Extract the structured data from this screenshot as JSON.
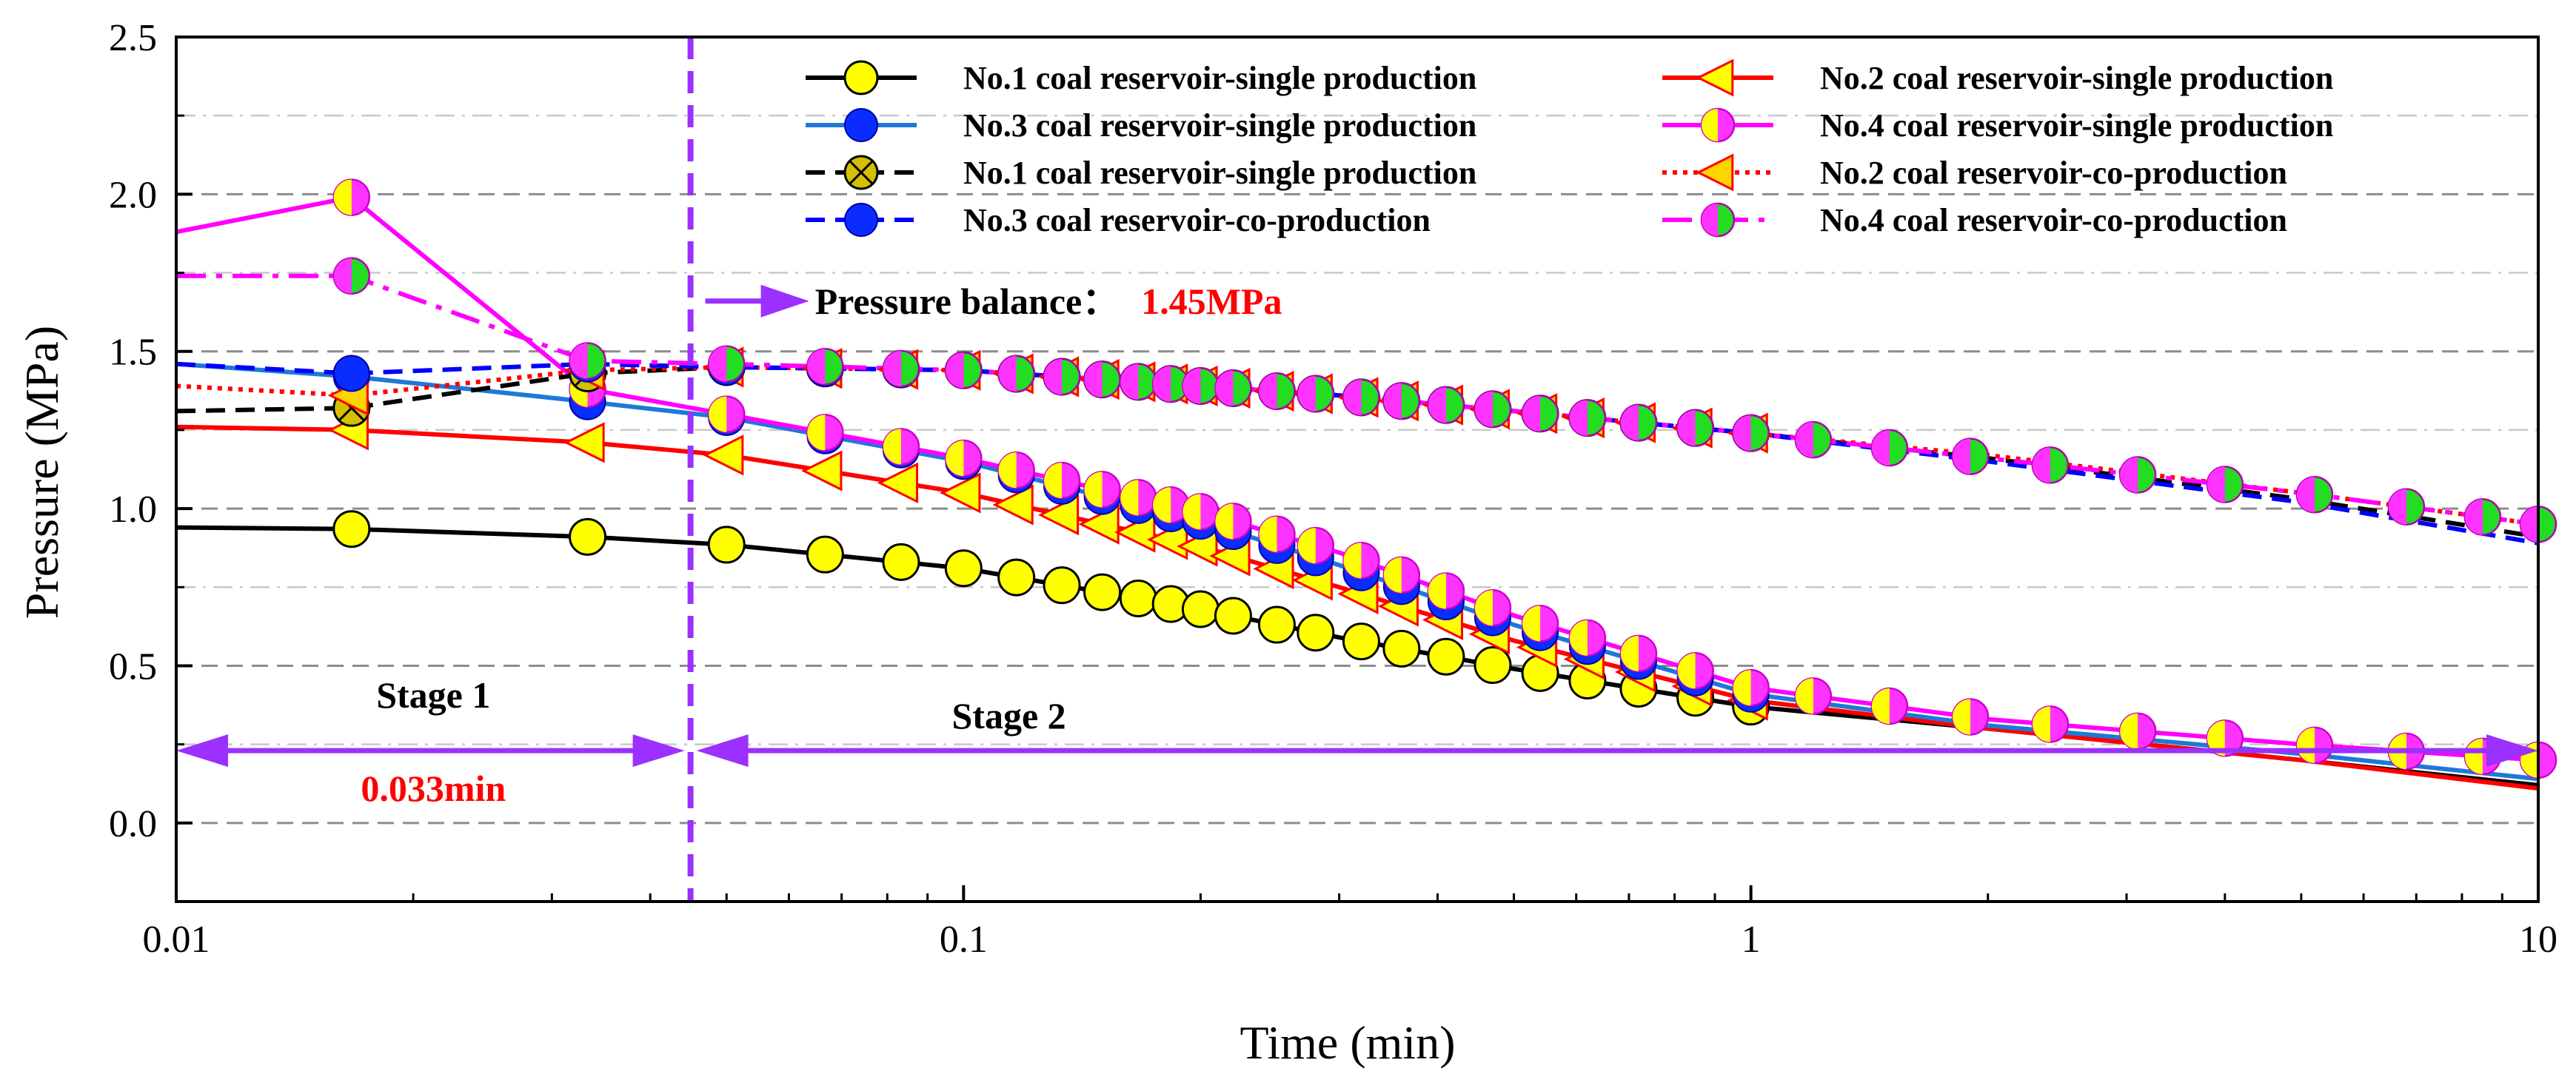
{
  "chart_data": {
    "type": "line",
    "xlabel": "Time (min)",
    "ylabel": "Pressure (MPa)",
    "x_scale": "log",
    "xlim": [
      0.01,
      10
    ],
    "ylim": [
      -0.25,
      2.5
    ],
    "x_ticks": [
      {
        "value": 0.01,
        "label": "0.01"
      },
      {
        "value": 0.1,
        "label": "0.1"
      },
      {
        "value": 1,
        "label": "1"
      },
      {
        "value": 10,
        "label": "10"
      }
    ],
    "y_ticks": [
      {
        "value": 0.0,
        "label": "0.0"
      },
      {
        "value": 0.5,
        "label": "0.5"
      },
      {
        "value": 1.0,
        "label": "1.0"
      },
      {
        "value": 1.5,
        "label": "1.5"
      },
      {
        "value": 2.0,
        "label": "2.0"
      },
      {
        "value": 2.5,
        "label": "2.5"
      }
    ],
    "major_grid": [
      0.0,
      0.5,
      1.0,
      1.5,
      2.0
    ],
    "minor_grid": [
      0.25,
      0.75,
      1.25,
      1.75,
      2.25
    ],
    "legend_position": "top-right",
    "series": [
      {
        "name": "No.1 coal reservoir-single production",
        "color": "#000000",
        "dash": "solid",
        "marker": "circle-yellow",
        "x": [
          0.01,
          0.0167,
          0.0333,
          0.05,
          0.1,
          0.2,
          0.3,
          0.5,
          1,
          2,
          5,
          10
        ],
        "y": [
          0.94,
          0.935,
          0.91,
          0.885,
          0.81,
          0.68,
          0.59,
          0.49,
          0.37,
          0.3,
          0.2,
          0.12
        ]
      },
      {
        "name": "No.2 coal reservoir-single production",
        "color": "#ff0000",
        "dash": "solid",
        "marker": "triangle-left-yellow",
        "x": [
          0.01,
          0.0167,
          0.0333,
          0.05,
          0.1,
          0.2,
          0.3,
          0.5,
          1,
          2,
          5,
          10
        ],
        "y": [
          1.26,
          1.25,
          1.21,
          1.17,
          1.05,
          0.88,
          0.75,
          0.58,
          0.39,
          0.3,
          0.2,
          0.11
        ]
      },
      {
        "name": "No.3 coal reservoir-single production",
        "color": "#1e78d8",
        "dash": "solid",
        "marker": "circle-blue",
        "x": [
          0.01,
          0.0167,
          0.0333,
          0.05,
          0.1,
          0.2,
          0.3,
          0.5,
          1,
          2,
          5,
          10
        ],
        "y": [
          1.46,
          1.42,
          1.34,
          1.29,
          1.15,
          0.96,
          0.82,
          0.63,
          0.41,
          0.31,
          0.22,
          0.14
        ]
      },
      {
        "name": "No.4 coal reservoir-single production",
        "color": "#ff00ff",
        "dash": "solid",
        "marker": "circle-half",
        "x": [
          0.01,
          0.0167,
          0.0333,
          0.05,
          0.1,
          0.2,
          0.3,
          0.5,
          1,
          2,
          5,
          10
        ],
        "y": [
          1.88,
          1.99,
          1.38,
          1.3,
          1.16,
          0.99,
          0.86,
          0.66,
          0.43,
          0.33,
          0.25,
          0.2
        ]
      },
      {
        "name": "No.1 coal reservoir-single production",
        "color": "#000000",
        "dash": "dashed",
        "marker": "circle-x",
        "x": [
          0.01,
          0.0167,
          0.0333,
          0.05,
          0.1,
          0.2,
          0.3,
          0.5,
          1,
          2,
          5,
          10
        ],
        "y": [
          1.31,
          1.32,
          1.43,
          1.45,
          1.44,
          1.39,
          1.36,
          1.31,
          1.24,
          1.16,
          1.03,
          0.91
        ]
      },
      {
        "name": "No.2 coal reservoir-co-production",
        "color": "#ff0000",
        "dash": "dotted",
        "marker": "triangle-left-red",
        "x": [
          0.01,
          0.0167,
          0.0333,
          0.05,
          0.1,
          0.2,
          0.3,
          0.5,
          1,
          2,
          5,
          10
        ],
        "y": [
          1.39,
          1.36,
          1.44,
          1.45,
          1.44,
          1.39,
          1.36,
          1.31,
          1.24,
          1.17,
          1.05,
          0.95
        ]
      },
      {
        "name": "No.3 coal reservoir-co-production",
        "color": "#0000ff",
        "dash": "dashed",
        "marker": "circle-blue-solid",
        "x": [
          0.01,
          0.0167,
          0.0333,
          0.05,
          0.1,
          0.2,
          0.3,
          0.5,
          1,
          2,
          5,
          10
        ],
        "y": [
          1.46,
          1.43,
          1.46,
          1.45,
          1.44,
          1.39,
          1.36,
          1.31,
          1.24,
          1.15,
          1.02,
          0.89
        ]
      },
      {
        "name": "No.4 coal reservoir-co-production",
        "color": "#ff00ff",
        "dash": "dashdot",
        "marker": "circle-green-magenta",
        "x": [
          0.01,
          0.0167,
          0.0333,
          0.05,
          0.1,
          0.2,
          0.3,
          0.5,
          1,
          2,
          5,
          10
        ],
        "y": [
          1.74,
          1.74,
          1.47,
          1.46,
          1.44,
          1.39,
          1.36,
          1.31,
          1.24,
          1.16,
          1.05,
          0.95
        ]
      }
    ],
    "annotations": {
      "stage1_label": "Stage 1",
      "stage2_label": "Stage 2",
      "stage1_duration": "0.033min",
      "divider_x": 0.045,
      "arrow_y": 0.23,
      "balance_label": "Pressure balance：",
      "balance_value": "1.45MPa",
      "balance_arrow_y": 1.66
    },
    "colors": {
      "stage_arrow": "#9b30ff",
      "highlight_text": "#ff0000",
      "marker_yellow": "#ffff00",
      "marker_green": "#22dd22",
      "marker_blue": "#0a2cff"
    }
  }
}
